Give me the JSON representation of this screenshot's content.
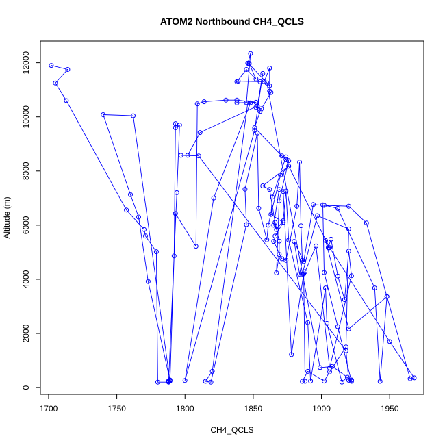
{
  "chart_data": {
    "type": "line",
    "title": "ATOM2 Northbound CH4_QCLS",
    "xlabel": "CH4_QCLS",
    "ylabel": "Altitude (m)",
    "xlim": [
      1694,
      1975
    ],
    "ylim": [
      -250,
      12800
    ],
    "xticks": [
      1700,
      1750,
      1800,
      1850,
      1900,
      1950
    ],
    "yticks": [
      0,
      2000,
      4000,
      6000,
      8000,
      10000,
      12000
    ],
    "grid": false,
    "legend": "none",
    "colors": {
      "series": "#0000ff",
      "axis": "#000000",
      "background": "#ffffff"
    },
    "marker": "open-circle",
    "series": [
      {
        "points": [
          [
            1702,
            11900
          ],
          [
            1714,
            11750
          ],
          [
            1705,
            11250
          ],
          [
            1713,
            10600
          ],
          [
            1757,
            6560
          ],
          [
            1770,
            5840
          ],
          [
            1771,
            5600
          ],
          [
            1779,
            5020
          ],
          [
            1780,
            200
          ],
          [
            1788,
            200
          ],
          [
            1788,
            250
          ],
          [
            1789,
            280
          ],
          [
            1792,
            4860
          ],
          [
            1793,
            9750
          ],
          [
            1793,
            9600
          ],
          [
            1796,
            9700
          ],
          [
            1794,
            7200
          ],
          [
            1788,
            220
          ],
          [
            1789,
            240
          ],
          [
            1762,
            10040
          ],
          [
            1740,
            10080
          ],
          [
            1760,
            7130
          ],
          [
            1766,
            6300
          ],
          [
            1773,
            3920
          ],
          [
            1789,
            260
          ],
          [
            1793,
            6430
          ],
          [
            1808,
            5220
          ],
          [
            1809,
            10480
          ],
          [
            1814,
            10560
          ],
          [
            1830,
            10620
          ],
          [
            1838,
            10620
          ],
          [
            1852,
            10540
          ],
          [
            1838,
            10520
          ],
          [
            1845,
            10520
          ],
          [
            1848,
            12340
          ],
          [
            1846,
            11980
          ],
          [
            1847,
            11980
          ],
          [
            1852,
            11400
          ],
          [
            1845,
            11750
          ],
          [
            1838,
            11300
          ],
          [
            1839,
            11320
          ],
          [
            1855,
            11300
          ],
          [
            1858,
            11300
          ],
          [
            1862,
            11800
          ],
          [
            1862,
            10950
          ],
          [
            1863,
            10900
          ],
          [
            1856,
            10300
          ],
          [
            1852,
            10350
          ],
          [
            1855,
            10200
          ],
          [
            1851,
            9600
          ],
          [
            1871,
            8560
          ],
          [
            1874,
            8430
          ],
          [
            1876,
            8180
          ],
          [
            1857,
            7450
          ],
          [
            1862,
            7320
          ],
          [
            1866,
            6100
          ],
          [
            1869,
            5410
          ],
          [
            1869,
            4920
          ],
          [
            1867,
            4240
          ],
          [
            1869,
            6900
          ],
          [
            1876,
            8380
          ],
          [
            1874,
            8520
          ],
          [
            1864,
            7040
          ],
          [
            1863,
            6400
          ],
          [
            1872,
            6100
          ],
          [
            1866,
            5600
          ],
          [
            1865,
            5400
          ],
          [
            1871,
            4760
          ],
          [
            1874,
            4700
          ],
          [
            1882,
            6700
          ],
          [
            1884,
            8330
          ],
          [
            1885,
            5980
          ],
          [
            1886,
            4700
          ],
          [
            1884,
            4190
          ],
          [
            1880,
            5400
          ],
          [
            1887,
            4660
          ],
          [
            1894,
            6760
          ],
          [
            1902,
            6730
          ],
          [
            1920,
            6700
          ],
          [
            1933,
            6080
          ],
          [
            1948,
            3360
          ],
          [
            1920,
            2170
          ],
          [
            1903,
            5430
          ],
          [
            1905,
            5170
          ],
          [
            1907,
            5480
          ],
          [
            1912,
            4120
          ],
          [
            1917,
            3250
          ],
          [
            1920,
            5040
          ],
          [
            1922,
            4130
          ],
          [
            1906,
            720
          ],
          [
            1896,
            5230
          ],
          [
            1888,
            4280
          ],
          [
            1886,
            4190
          ],
          [
            1897,
            6350
          ],
          [
            1920,
            5860
          ],
          [
            1918,
            1500
          ],
          [
            1906,
            580
          ],
          [
            1902,
            240
          ],
          [
            1890,
            600
          ],
          [
            1886,
            230
          ],
          [
            1888,
            230
          ],
          [
            1887,
            4200
          ],
          [
            1878,
            1220
          ],
          [
            1872,
            7240
          ],
          [
            1869,
            7320
          ],
          [
            1865,
            6000
          ],
          [
            1867,
            5840
          ],
          [
            1872,
            6160
          ],
          [
            1874,
            7260
          ],
          [
            1876,
            5450
          ],
          [
            1890,
            2400
          ],
          [
            1892,
            240
          ],
          [
            1903,
            3680
          ],
          [
            1904,
            2370
          ],
          [
            1915,
            200
          ],
          [
            1919,
            380
          ],
          [
            1922,
            280
          ],
          [
            1922,
            230
          ],
          [
            1912,
            2250
          ],
          [
            1902,
            4250
          ],
          [
            1901,
            6750
          ],
          [
            1912,
            6620
          ],
          [
            1939,
            3680
          ],
          [
            1943,
            230
          ],
          [
            1948,
            3360
          ],
          [
            1965,
            330
          ],
          [
            1968,
            360
          ],
          [
            1950,
            1700
          ],
          [
            1906,
            5170
          ],
          [
            1876,
            8180
          ],
          [
            1870,
            7850
          ],
          [
            1861,
            6000
          ],
          [
            1860,
            5460
          ],
          [
            1854,
            6620
          ],
          [
            1853,
            9400
          ],
          [
            1844,
            7330
          ],
          [
            1845,
            6020
          ],
          [
            1819,
            200
          ],
          [
            1815,
            230
          ],
          [
            1820,
            600
          ],
          [
            1846,
            10520
          ],
          [
            1848,
            10520
          ],
          [
            1821,
            7000
          ],
          [
            1800,
            260
          ],
          [
            1851,
            9500
          ],
          [
            1857,
            11600
          ],
          [
            1853,
            10400
          ],
          [
            1811,
            9420
          ],
          [
            1802,
            8580
          ],
          [
            1797,
            8580
          ],
          [
            1810,
            8560
          ],
          [
            1918,
            1360
          ],
          [
            1920,
            270
          ],
          [
            1922,
            270
          ],
          [
            1908,
            780
          ],
          [
            1899,
            740
          ],
          [
            1860,
            11250
          ],
          [
            1862,
            11150
          ],
          [
            1847,
            11950
          ]
        ]
      }
    ]
  }
}
